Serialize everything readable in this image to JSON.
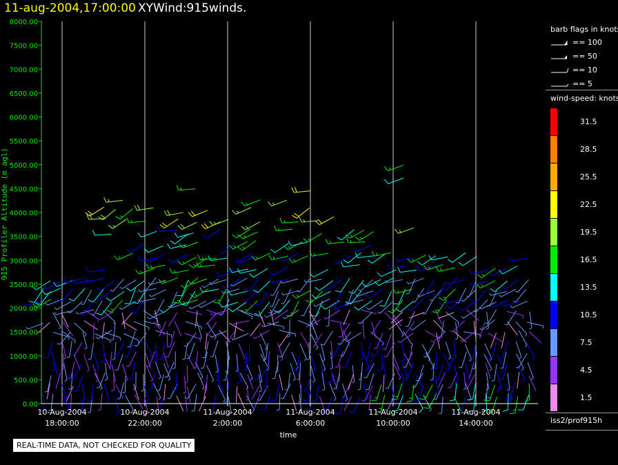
{
  "header": {
    "datetime": "11-aug-2004,17:00:00",
    "product": "XYWind:915winds."
  },
  "chart_data": {
    "type": "wind-barb time-height profile",
    "ylabel": "915 Profiler Altitude (m agl)",
    "xlabel": "time",
    "ylim": [
      0,
      8000
    ],
    "yticks": [
      "0.00",
      "500.00",
      "1000.00",
      "1500.00",
      "2000.00",
      "2500.00",
      "3000.00",
      "3500.00",
      "4000.00",
      "4500.00",
      "5000.00",
      "5500.00",
      "6000.00",
      "6500.00",
      "7000.00",
      "7500.00",
      "8000.00"
    ],
    "xticks": [
      {
        "date": "10-Aug-2004",
        "time": "18:00:00",
        "hour": 18
      },
      {
        "date": "10-Aug-2004",
        "time": "22:00:00",
        "hour": 22
      },
      {
        "date": "11-Aug-2004",
        "time": "2:00:00",
        "hour": 26
      },
      {
        "date": "11-Aug-2004",
        "time": "6:00:00",
        "hour": 30
      },
      {
        "date": "11-Aug-2004",
        "time": "10:00:00",
        "hour": 34
      },
      {
        "date": "11-Aug-2004",
        "time": "14:00:00",
        "hour": 38
      }
    ],
    "xlim_hours": [
      17.0,
      41.0
    ],
    "vertical_gridlines": true,
    "profile_times_hours": [
      17.0,
      17.5,
      18.0,
      18.5,
      19.0,
      19.5,
      20.0,
      20.5,
      21.0,
      21.5,
      22.0,
      22.5,
      23.0,
      23.5,
      24.0,
      24.5,
      25.0,
      25.5,
      26.0,
      26.5,
      27.0,
      27.5,
      28.0,
      28.5,
      29.0,
      29.5,
      30.0,
      30.5,
      31.0,
      31.5,
      32.0,
      32.5,
      33.0,
      33.5,
      34.0,
      34.5,
      35.0,
      35.5,
      36.0,
      36.5,
      37.0,
      37.5,
      38.0,
      38.5,
      39.0,
      39.5,
      40.0,
      40.5
    ],
    "range_gates_m": [
      180,
      400,
      620,
      840,
      1060,
      1280,
      1500,
      1720,
      1940,
      2160,
      2380,
      2600
    ],
    "upper_gates_m": [
      2850,
      3100,
      3350,
      3600,
      3850,
      4050,
      4250,
      4450
    ],
    "sporadic_obs": [
      {
        "hour": 34.5,
        "alt": 4990,
        "speed": 16
      },
      {
        "hour": 34.5,
        "alt": 4720,
        "speed": 13
      },
      {
        "hour": 17.0,
        "alt": 3620,
        "speed": 15
      },
      {
        "hour": 35.0,
        "alt": 3680,
        "speed": 18
      }
    ],
    "speed_unit": "knots"
  },
  "legend": {
    "barb_title": "barb flags in knots",
    "barbs": [
      {
        "label": "== 100",
        "kind": "flag100"
      },
      {
        "label": "== 50",
        "kind": "flag50"
      },
      {
        "label": "== 10",
        "kind": "full"
      },
      {
        "label": "== 5",
        "kind": "half"
      }
    ],
    "speed_title": "wind-speed: knots",
    "scale": [
      {
        "label": "31.5",
        "color": "#ff0000"
      },
      {
        "label": "28.5",
        "color": "#ff7f00"
      },
      {
        "label": "25.5",
        "color": "#ffaa00"
      },
      {
        "label": "22.5",
        "color": "#ffff00"
      },
      {
        "label": "19.5",
        "color": "#99ff33"
      },
      {
        "label": "16.5",
        "color": "#00ee00"
      },
      {
        "label": "13.5",
        "color": "#00ffff"
      },
      {
        "label": "10.5",
        "color": "#0000ff"
      },
      {
        "label": "7.5",
        "color": "#6699ff"
      },
      {
        "label": "4.5",
        "color": "#9933ff"
      },
      {
        "label": "1.5",
        "color": "#ee88ee"
      }
    ],
    "source": "iss2/prof915h"
  },
  "notice": "REAL-TIME DATA, NOT CHECKED FOR QUALITY"
}
